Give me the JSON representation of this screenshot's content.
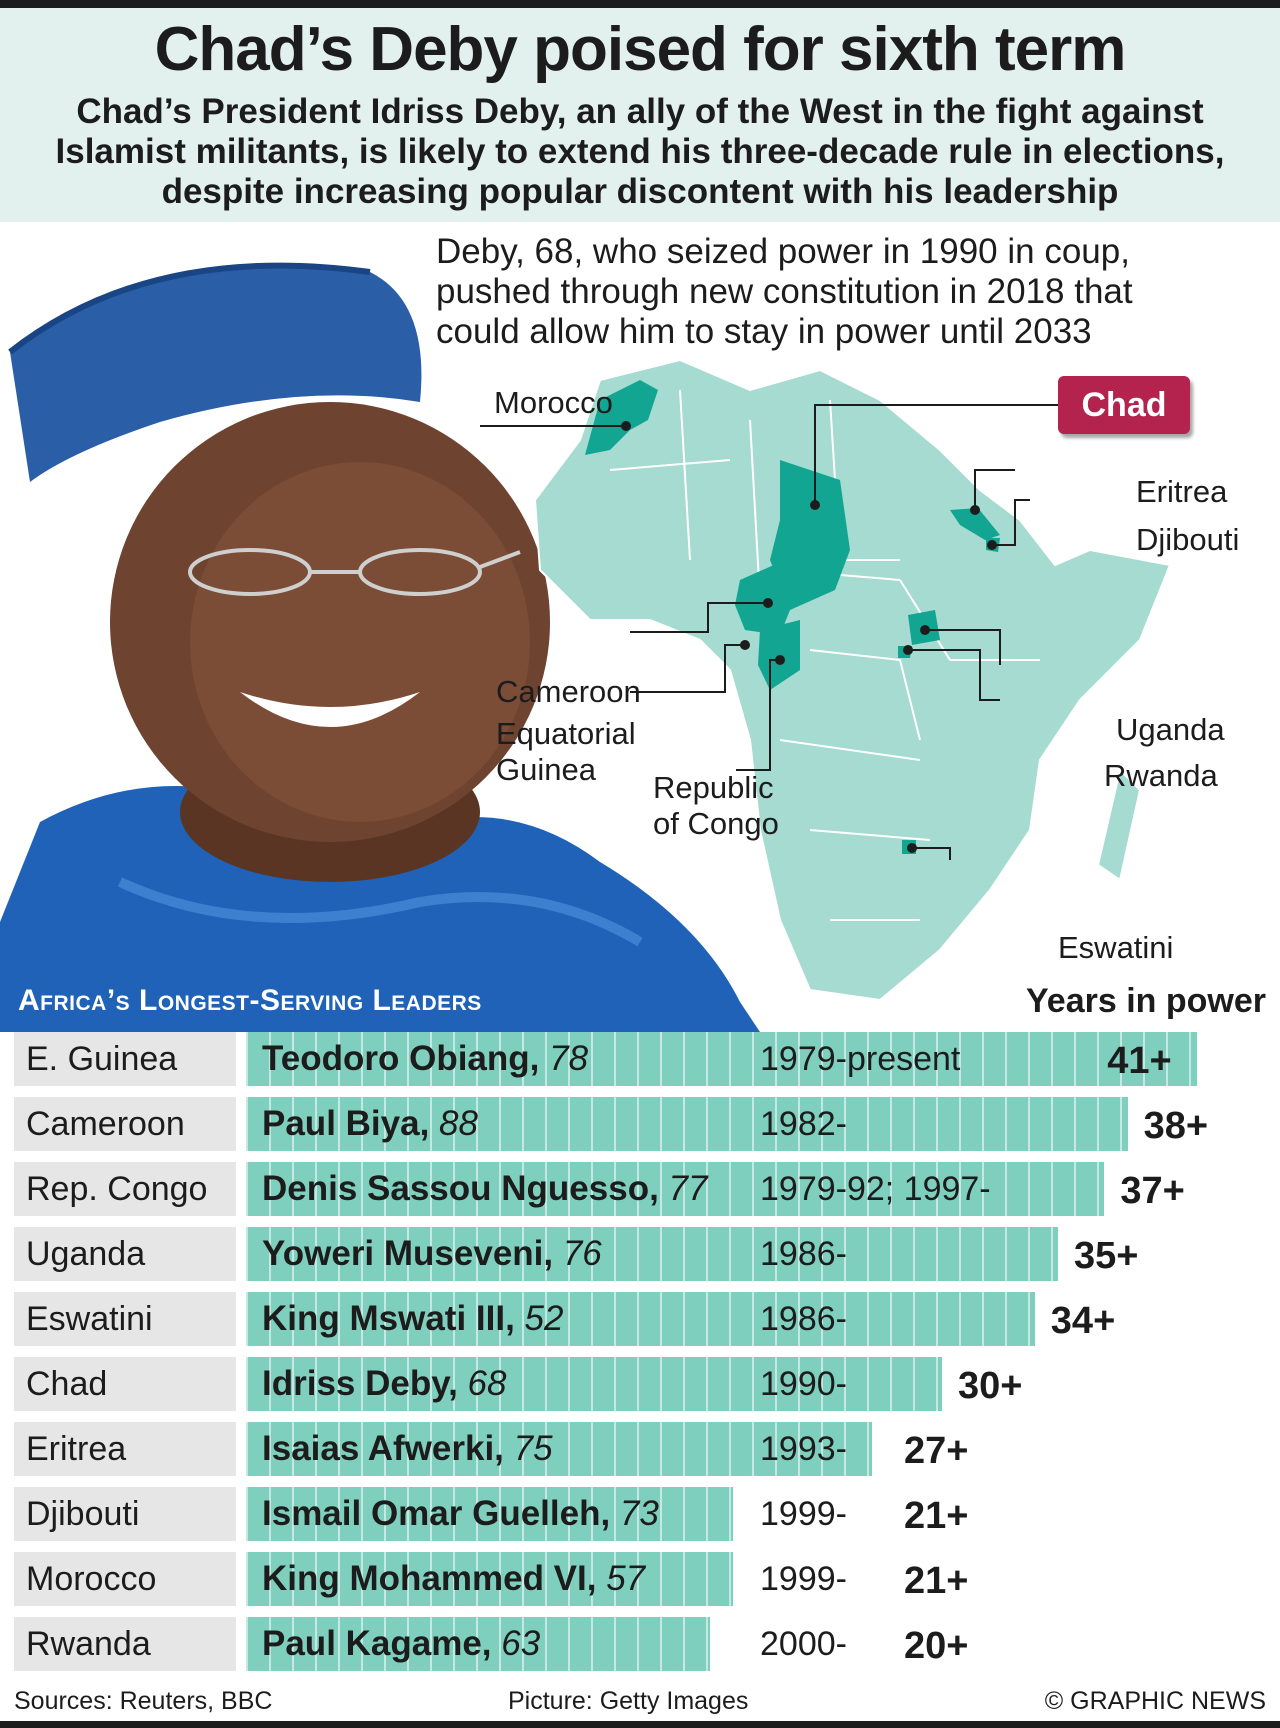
{
  "header": {
    "title": "Chad’s Deby poised for sixth term",
    "subtitle": "Chad’s President Idriss Deby, an ally of the West in the fight against Islamist militants, is likely to extend his three-decade rule in elections, despite increasing popular discontent with his leadership"
  },
  "intro_text": "Deby, 68, who seized power in 1990 in coup, pushed through new constitution in 2018 that could allow him to stay in power until 2033",
  "map": {
    "highlight_label": "Chad",
    "labels": {
      "morocco": "Morocco",
      "eritrea": "Eritrea",
      "djibouti": "Djibouti",
      "cameroon": "Cameroon",
      "eq_guinea_1": "Equatorial",
      "eq_guinea_2": "Guinea",
      "congo_1": "Republic",
      "congo_2": "of Congo",
      "uganda": "Uganda",
      "rwanda": "Rwanda",
      "eswatini": "Eswatini"
    }
  },
  "colors": {
    "land": "#a5dbd0",
    "highlight": "#12a592",
    "bar": "#7fcfbe",
    "chad_box": "#b3234d",
    "header_bg": "#e3f1ee"
  },
  "chart_data": {
    "type": "bar",
    "title": "Africa’s Longest-Serving Leaders",
    "value_label": "Years in power",
    "categories": [
      "E. Guinea",
      "Cameroon",
      "Rep. Congo",
      "Uganda",
      "Eswatini",
      "Chad",
      "Eritrea",
      "Djibouti",
      "Morocco",
      "Rwanda"
    ],
    "values": [
      41,
      38,
      37,
      35,
      34,
      30,
      27,
      21,
      21,
      20
    ],
    "value_labels": [
      "41+",
      "38+",
      "37+",
      "35+",
      "34+",
      "30+",
      "27+",
      "21+",
      "21+",
      "20+"
    ],
    "leaders": [
      "Teodoro Obiang,",
      "Paul Biya,",
      "Denis Sassou Nguesso,",
      "Yoweri Museveni,",
      "King Mswati III,",
      "Idriss Deby,",
      "Isaias Afwerki,",
      "Ismail Omar Guelleh,",
      "King Mohammed VI,",
      "Paul Kagame,"
    ],
    "ages": [
      "78",
      "88",
      "77",
      "76",
      "52",
      "68",
      "75",
      "73",
      "57",
      "63"
    ],
    "periods": [
      "1979-present",
      "1982-",
      "1979-92; 1997-",
      "1986-",
      "1986-",
      "1990-",
      "1993-",
      "1999-",
      "1999-",
      "2000-"
    ]
  },
  "footer": {
    "sources": "Sources: Reuters, BBC",
    "picture": "Picture: Getty Images",
    "credit": "© GRAPHIC NEWS"
  }
}
